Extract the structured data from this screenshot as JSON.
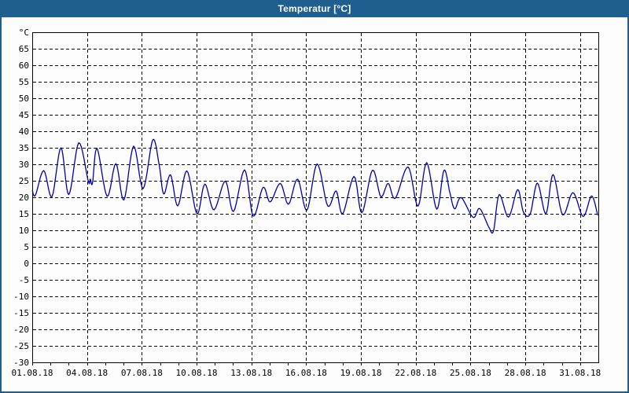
{
  "window": {
    "title": "Temperatur [°C]"
  },
  "colors": {
    "titlebar_bg": "#1E5F90",
    "titlebar_text": "#FFFFFF",
    "window_border": "#1E5F90",
    "content_bg": "#FCFDFC",
    "plot_border": "#000000",
    "grid": "#000000",
    "axis_text": "#000000",
    "series_line": "#0000AA"
  },
  "chart_data": {
    "type": "line",
    "title": "Temperatur [°C]",
    "grid_style": "dashed",
    "legend": "none",
    "y_axis": {
      "unit_label": "°C",
      "range": [
        -30,
        70
      ],
      "tick_step": 5,
      "tick_labels": [
        "65",
        "60",
        "55",
        "50",
        "45",
        "40",
        "35",
        "30",
        "25",
        "20",
        "15",
        "10",
        "5",
        "0",
        "-5",
        "-10",
        "-15",
        "-20",
        "-25",
        "-30"
      ],
      "gridline_values": [
        65,
        60,
        55,
        50,
        45,
        40,
        35,
        30,
        25,
        20,
        15,
        10,
        5,
        0,
        -5,
        -10,
        -15,
        -20,
        -25
      ]
    },
    "x_axis": {
      "range_days": [
        1,
        32
      ],
      "minor_tick_step_days": 1,
      "minor_tick_last_day": 31,
      "gridline_days": [
        4,
        7,
        10,
        13,
        16,
        19,
        22,
        25,
        28,
        31
      ],
      "labels": [
        {
          "day": 1,
          "text": "01.08.18"
        },
        {
          "day": 4,
          "text": "04.08.18"
        },
        {
          "day": 7,
          "text": "07.08.18"
        },
        {
          "day": 10,
          "text": "10.08.18"
        },
        {
          "day": 13,
          "text": "13.08.18"
        },
        {
          "day": 16,
          "text": "16.08.18"
        },
        {
          "day": 19,
          "text": "19.08.18"
        },
        {
          "day": 22,
          "text": "22.08.18"
        },
        {
          "day": 25,
          "text": "25.08.18"
        },
        {
          "day": 28,
          "text": "28.08.18"
        },
        {
          "day": 31,
          "text": "31.08.18"
        }
      ]
    },
    "series": [
      {
        "name": "Temperatur",
        "color": "#0000AA",
        "points": [
          [
            1.0,
            22.2
          ],
          [
            1.17,
            20.6
          ],
          [
            1.63,
            28.1
          ],
          [
            2.08,
            20.2
          ],
          [
            2.57,
            35.0
          ],
          [
            3.0,
            20.8
          ],
          [
            3.55,
            36.5
          ],
          [
            4.07,
            24.8
          ],
          [
            4.18,
            25.5
          ],
          [
            4.3,
            24.3
          ],
          [
            4.55,
            34.8
          ],
          [
            5.1,
            20.3
          ],
          [
            5.58,
            30.2
          ],
          [
            6.02,
            19.2
          ],
          [
            6.55,
            35.5
          ],
          [
            7.07,
            22.6
          ],
          [
            7.6,
            37.4
          ],
          [
            7.95,
            29.9
          ],
          [
            8.2,
            21.0
          ],
          [
            8.57,
            26.8
          ],
          [
            8.97,
            17.4
          ],
          [
            9.47,
            28.0
          ],
          [
            10.02,
            15.0
          ],
          [
            10.45,
            24.0
          ],
          [
            10.95,
            16.2
          ],
          [
            11.57,
            24.9
          ],
          [
            12.02,
            15.7
          ],
          [
            12.63,
            28.3
          ],
          [
            13.1,
            14.3
          ],
          [
            13.64,
            23.0
          ],
          [
            14.03,
            18.6
          ],
          [
            14.58,
            24.2
          ],
          [
            15.03,
            17.9
          ],
          [
            15.53,
            25.5
          ],
          [
            16.04,
            16.1
          ],
          [
            16.6,
            30.1
          ],
          [
            17.18,
            17.4
          ],
          [
            17.64,
            21.9
          ],
          [
            18.0,
            15.0
          ],
          [
            18.62,
            26.3
          ],
          [
            19.05,
            15.3
          ],
          [
            19.63,
            28.2
          ],
          [
            20.09,
            20.2
          ],
          [
            20.49,
            24.2
          ],
          [
            20.88,
            19.7
          ],
          [
            21.58,
            29.2
          ],
          [
            22.12,
            17.3
          ],
          [
            22.6,
            30.5
          ],
          [
            23.15,
            16.4
          ],
          [
            23.55,
            28.2
          ],
          [
            23.87,
            21.4
          ],
          [
            24.13,
            16.5
          ],
          [
            24.49,
            19.9
          ],
          [
            25.14,
            13.9
          ],
          [
            25.5,
            16.6
          ],
          [
            26.0,
            11.0
          ],
          [
            26.26,
            9.8
          ],
          [
            26.57,
            20.8
          ],
          [
            27.08,
            14.0
          ],
          [
            27.58,
            22.3
          ],
          [
            27.9,
            15.5
          ],
          [
            28.27,
            15.0
          ],
          [
            28.66,
            24.3
          ],
          [
            29.13,
            15.0
          ],
          [
            29.52,
            26.9
          ],
          [
            30.05,
            14.7
          ],
          [
            30.61,
            21.4
          ],
          [
            31.17,
            14.2
          ],
          [
            31.63,
            20.4
          ],
          [
            31.97,
            14.5
          ]
        ]
      }
    ]
  }
}
